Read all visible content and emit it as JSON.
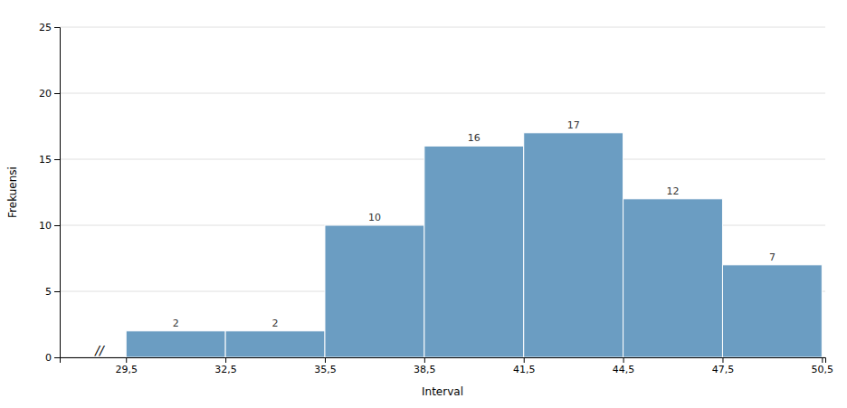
{
  "chart_data": {
    "type": "histogram",
    "bins": [
      29.5,
      32.5,
      35.5,
      38.5,
      41.5,
      44.5,
      47.5,
      50.5
    ],
    "values": [
      2,
      2,
      10,
      16,
      17,
      12,
      7
    ],
    "color": "#6B9DC2",
    "xlabel": "Interval",
    "ylabel": "Frekuensi",
    "xlim": [
      27.5,
      50.6
    ],
    "xticks": [
      {
        "value": 29.5,
        "label": "29,5"
      },
      {
        "value": 32.5,
        "label": "32,5"
      },
      {
        "value": 35.5,
        "label": "35,5"
      },
      {
        "value": 38.5,
        "label": "38,5"
      },
      {
        "value": 41.5,
        "label": "41,5"
      },
      {
        "value": 44.5,
        "label": "44,5"
      },
      {
        "value": 47.5,
        "label": "47,5"
      },
      {
        "value": 50.5,
        "label": "50,5"
      }
    ],
    "ylim": [
      0,
      25
    ],
    "yticks": [
      0,
      5,
      10,
      15,
      20,
      25
    ],
    "grid": true,
    "data_labels": true,
    "annotations": [
      {
        "text": "//",
        "x": 28.7,
        "y": 0.5
      }
    ]
  }
}
